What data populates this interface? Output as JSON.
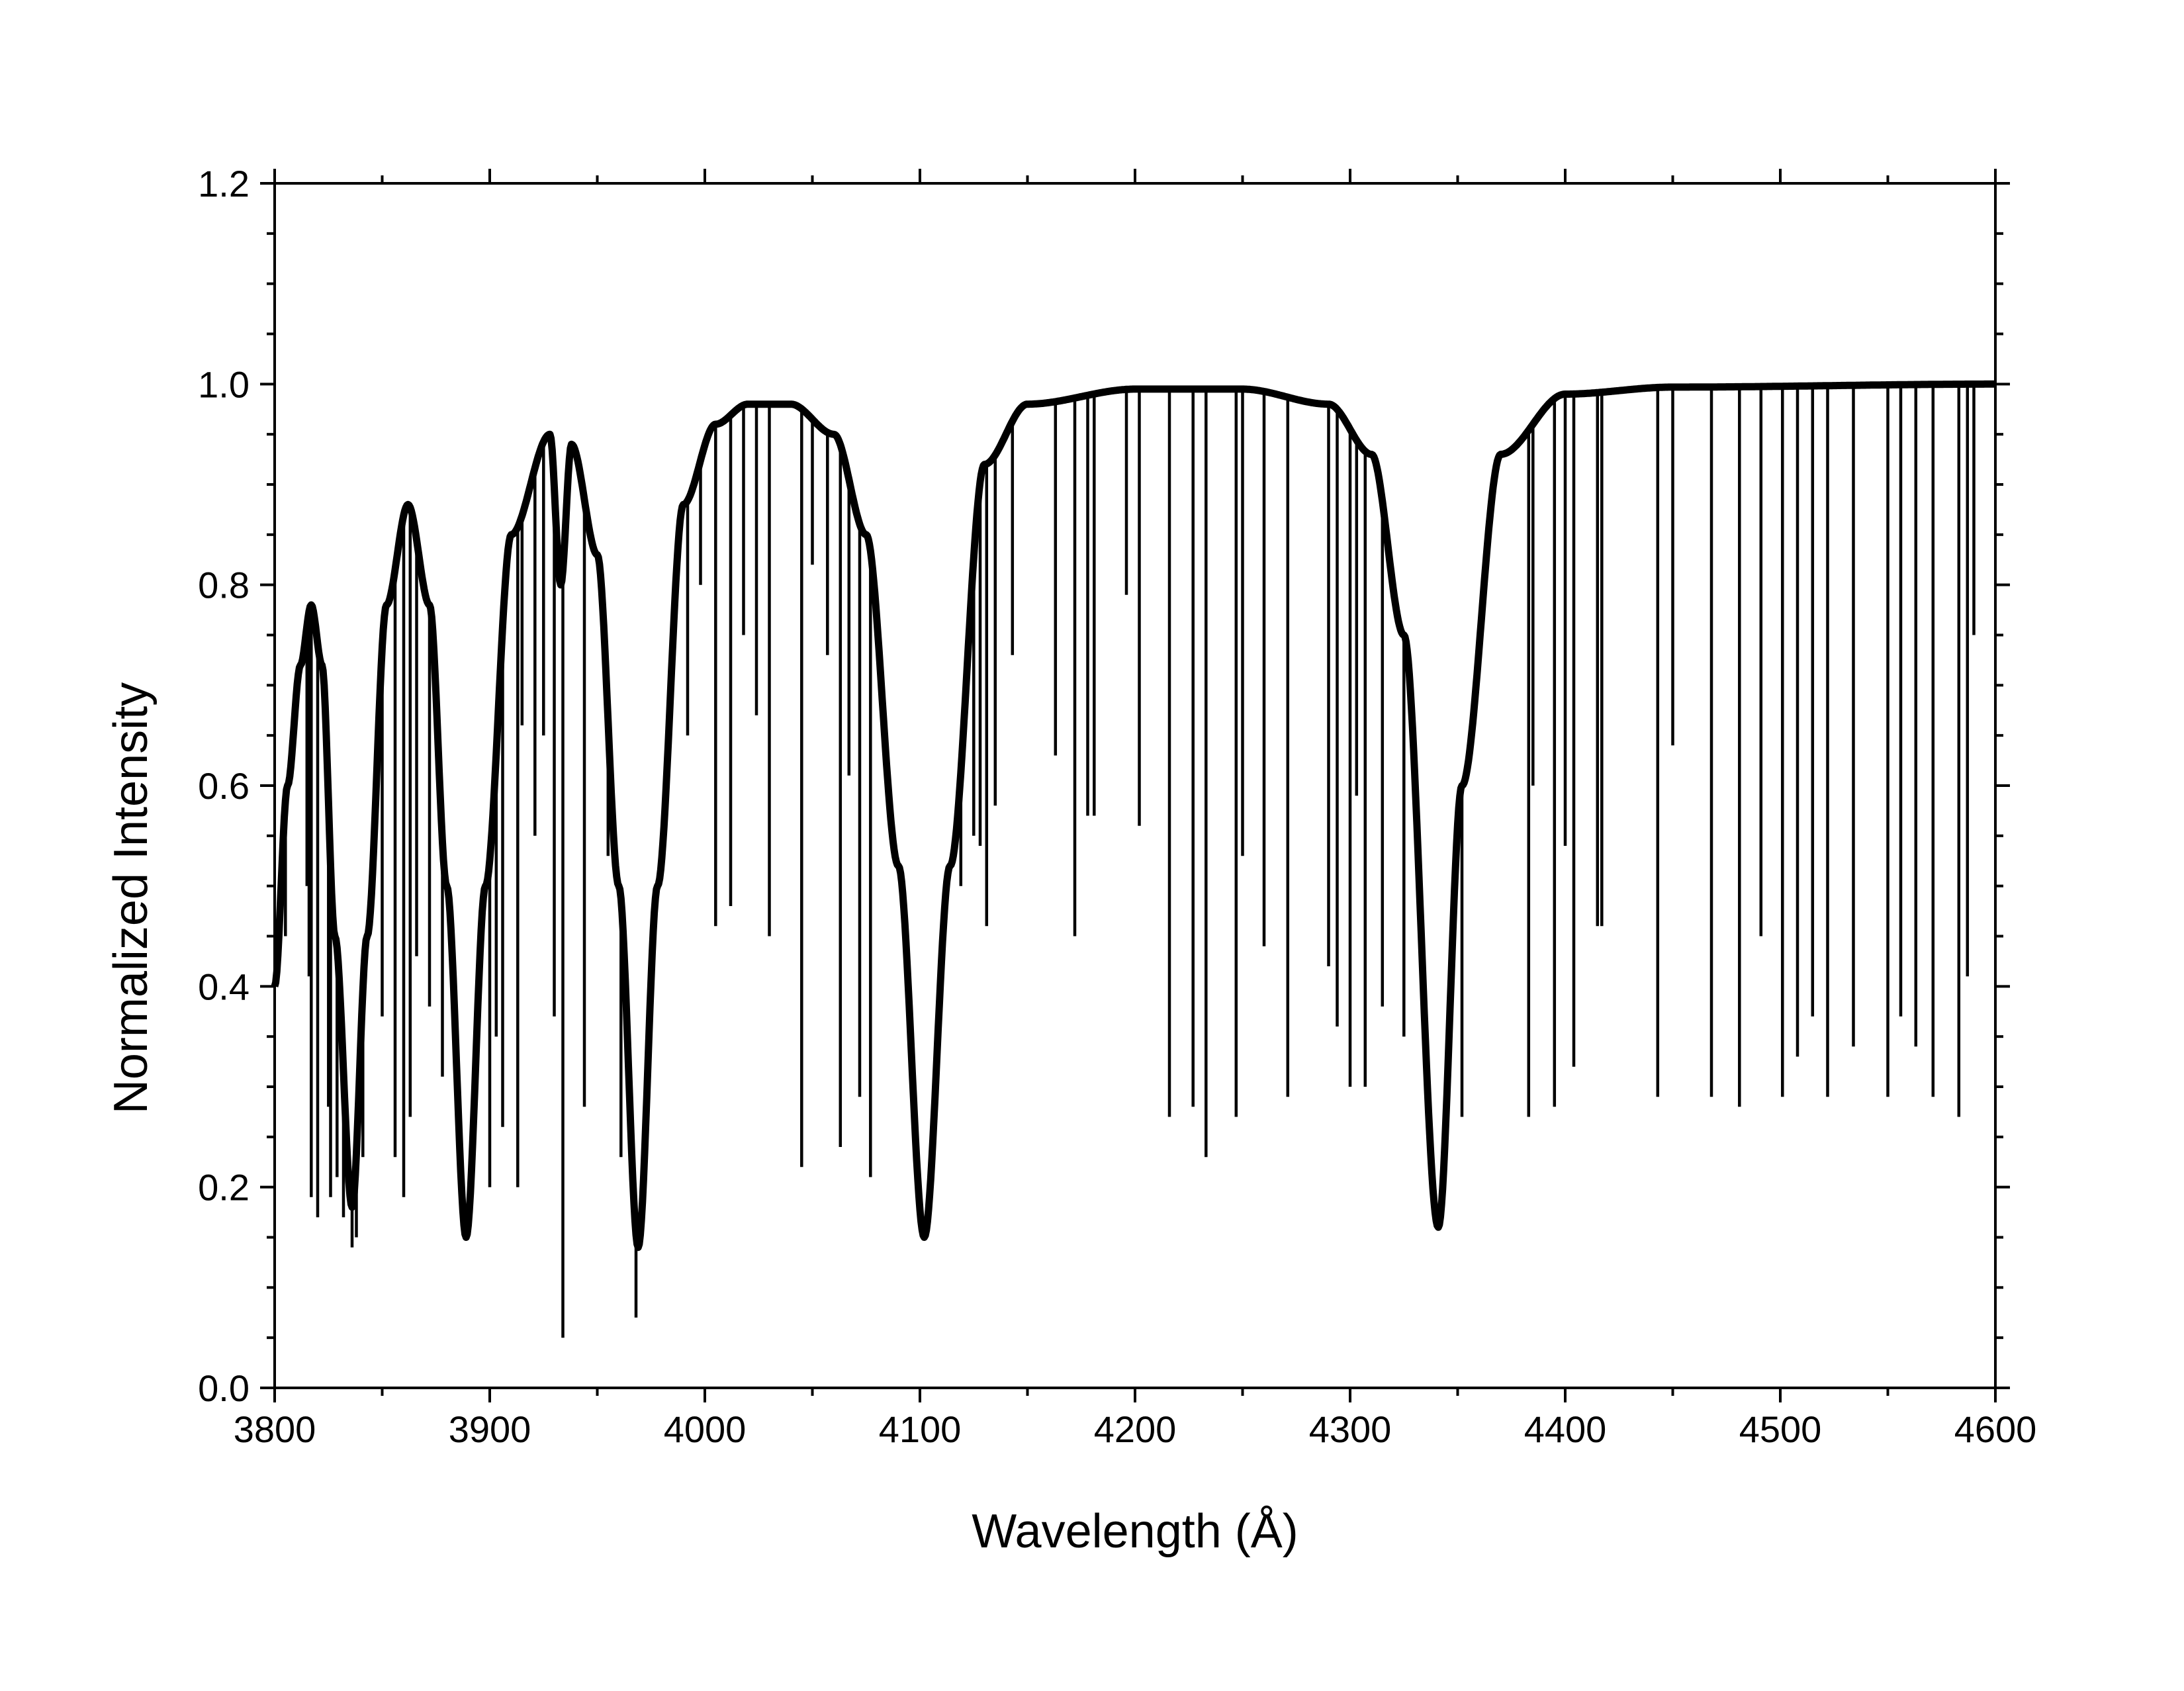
{
  "chart_data": {
    "type": "line",
    "xlabel": "Wavelength (Å)",
    "ylabel": "Normalized Intensity",
    "xlim": [
      3800,
      4600
    ],
    "ylim": [
      0.0,
      1.2
    ],
    "x_ticks": [
      "3800",
      "3900",
      "4000",
      "4100",
      "4200",
      "4300",
      "4400",
      "4500",
      "4600"
    ],
    "y_ticks": [
      "0.0",
      "0.2",
      "0.4",
      "0.6",
      "0.8",
      "1.0",
      "1.2"
    ],
    "grid": false,
    "legend": "none",
    "line_color": "#000000",
    "series": [
      {
        "continuum_anchor_points": [
          {
            "x": 3800,
            "y": 0.4
          },
          {
            "x": 3806,
            "y": 0.6
          },
          {
            "x": 3812,
            "y": 0.72
          },
          {
            "x": 3817,
            "y": 0.78
          },
          {
            "x": 3822,
            "y": 0.72
          },
          {
            "x": 3828,
            "y": 0.45
          },
          {
            "x": 3836,
            "y": 0.18
          },
          {
            "x": 3843,
            "y": 0.45
          },
          {
            "x": 3852,
            "y": 0.78
          },
          {
            "x": 3862,
            "y": 0.88
          },
          {
            "x": 3872,
            "y": 0.78
          },
          {
            "x": 3880,
            "y": 0.5
          },
          {
            "x": 3889,
            "y": 0.15
          },
          {
            "x": 3898,
            "y": 0.5
          },
          {
            "x": 3910,
            "y": 0.85
          },
          {
            "x": 3928,
            "y": 0.95
          },
          {
            "x": 3933,
            "y": 0.8
          },
          {
            "x": 3938,
            "y": 0.94
          },
          {
            "x": 3950,
            "y": 0.83
          },
          {
            "x": 3960,
            "y": 0.5
          },
          {
            "x": 3969,
            "y": 0.14
          },
          {
            "x": 3978,
            "y": 0.5
          },
          {
            "x": 3990,
            "y": 0.88
          },
          {
            "x": 4005,
            "y": 0.96
          },
          {
            "x": 4020,
            "y": 0.98
          },
          {
            "x": 4040,
            "y": 0.98
          },
          {
            "x": 4060,
            "y": 0.95
          },
          {
            "x": 4075,
            "y": 0.85
          },
          {
            "x": 4090,
            "y": 0.52
          },
          {
            "x": 4102,
            "y": 0.15
          },
          {
            "x": 4114,
            "y": 0.52
          },
          {
            "x": 4130,
            "y": 0.92
          },
          {
            "x": 4150,
            "y": 0.98
          },
          {
            "x": 4200,
            "y": 0.995
          },
          {
            "x": 4250,
            "y": 0.995
          },
          {
            "x": 4290,
            "y": 0.98
          },
          {
            "x": 4310,
            "y": 0.93
          },
          {
            "x": 4325,
            "y": 0.75
          },
          {
            "x": 4341,
            "y": 0.16
          },
          {
            "x": 4352,
            "y": 0.6
          },
          {
            "x": 4370,
            "y": 0.93
          },
          {
            "x": 4400,
            "y": 0.99
          },
          {
            "x": 4450,
            "y": 0.997
          },
          {
            "x": 4600,
            "y": 1.0
          }
        ],
        "absorption_lines": [
          {
            "x": 3805,
            "y": 0.45
          },
          {
            "x": 3815,
            "y": 0.5
          },
          {
            "x": 3816,
            "y": 0.41
          },
          {
            "x": 3817,
            "y": 0.19
          },
          {
            "x": 3820,
            "y": 0.17
          },
          {
            "x": 3825,
            "y": 0.28
          },
          {
            "x": 3826,
            "y": 0.19
          },
          {
            "x": 3829,
            "y": 0.21
          },
          {
            "x": 3832,
            "y": 0.17
          },
          {
            "x": 3836,
            "y": 0.14
          },
          {
            "x": 3838,
            "y": 0.15
          },
          {
            "x": 3841,
            "y": 0.23
          },
          {
            "x": 3845,
            "y": 0.5
          },
          {
            "x": 3850,
            "y": 0.37
          },
          {
            "x": 3856,
            "y": 0.23
          },
          {
            "x": 3860,
            "y": 0.19
          },
          {
            "x": 3863,
            "y": 0.27
          },
          {
            "x": 3866,
            "y": 0.43
          },
          {
            "x": 3872,
            "y": 0.38
          },
          {
            "x": 3878,
            "y": 0.31
          },
          {
            "x": 3886,
            "y": 0.26
          },
          {
            "x": 3900,
            "y": 0.2
          },
          {
            "x": 3903,
            "y": 0.35
          },
          {
            "x": 3906,
            "y": 0.26
          },
          {
            "x": 3913,
            "y": 0.2
          },
          {
            "x": 3915,
            "y": 0.66
          },
          {
            "x": 3921,
            "y": 0.55
          },
          {
            "x": 3925,
            "y": 0.65
          },
          {
            "x": 3930,
            "y": 0.37
          },
          {
            "x": 3934,
            "y": 0.05
          },
          {
            "x": 3944,
            "y": 0.28
          },
          {
            "x": 3955,
            "y": 0.53
          },
          {
            "x": 3961,
            "y": 0.23
          },
          {
            "x": 3968,
            "y": 0.07
          },
          {
            "x": 3986,
            "y": 0.78
          },
          {
            "x": 3992,
            "y": 0.65
          },
          {
            "x": 3998,
            "y": 0.8
          },
          {
            "x": 4005,
            "y": 0.46
          },
          {
            "x": 4012,
            "y": 0.48
          },
          {
            "x": 4018,
            "y": 0.75
          },
          {
            "x": 4024,
            "y": 0.67
          },
          {
            "x": 4030,
            "y": 0.45
          },
          {
            "x": 4045,
            "y": 0.22
          },
          {
            "x": 4050,
            "y": 0.82
          },
          {
            "x": 4057,
            "y": 0.73
          },
          {
            "x": 4063,
            "y": 0.24
          },
          {
            "x": 4067,
            "y": 0.61
          },
          {
            "x": 4072,
            "y": 0.29
          },
          {
            "x": 4077,
            "y": 0.21
          },
          {
            "x": 4084,
            "y": 0.65
          },
          {
            "x": 4119,
            "y": 0.5
          },
          {
            "x": 4125,
            "y": 0.55
          },
          {
            "x": 4128,
            "y": 0.54
          },
          {
            "x": 4131,
            "y": 0.46
          },
          {
            "x": 4135,
            "y": 0.58
          },
          {
            "x": 4143,
            "y": 0.73
          },
          {
            "x": 4163,
            "y": 0.63
          },
          {
            "x": 4172,
            "y": 0.45
          },
          {
            "x": 4178,
            "y": 0.57
          },
          {
            "x": 4181,
            "y": 0.57
          },
          {
            "x": 4196,
            "y": 0.79
          },
          {
            "x": 4202,
            "y": 0.56
          },
          {
            "x": 4216,
            "y": 0.27
          },
          {
            "x": 4227,
            "y": 0.28
          },
          {
            "x": 4233,
            "y": 0.23
          },
          {
            "x": 4247,
            "y": 0.27
          },
          {
            "x": 4250,
            "y": 0.53
          },
          {
            "x": 4260,
            "y": 0.44
          },
          {
            "x": 4271,
            "y": 0.29
          },
          {
            "x": 4290,
            "y": 0.42
          },
          {
            "x": 4294,
            "y": 0.36
          },
          {
            "x": 4300,
            "y": 0.3
          },
          {
            "x": 4303,
            "y": 0.59
          },
          {
            "x": 4307,
            "y": 0.3
          },
          {
            "x": 4315,
            "y": 0.38
          },
          {
            "x": 4325,
            "y": 0.35
          },
          {
            "x": 4352,
            "y": 0.27
          },
          {
            "x": 4383,
            "y": 0.27
          },
          {
            "x": 4385,
            "y": 0.6
          },
          {
            "x": 4395,
            "y": 0.28
          },
          {
            "x": 4400,
            "y": 0.54
          },
          {
            "x": 4404,
            "y": 0.32
          },
          {
            "x": 4415,
            "y": 0.46
          },
          {
            "x": 4417,
            "y": 0.46
          },
          {
            "x": 4443,
            "y": 0.29
          },
          {
            "x": 4450,
            "y": 0.64
          },
          {
            "x": 4468,
            "y": 0.29
          },
          {
            "x": 4481,
            "y": 0.28
          },
          {
            "x": 4491,
            "y": 0.45
          },
          {
            "x": 4501,
            "y": 0.29
          },
          {
            "x": 4508,
            "y": 0.33
          },
          {
            "x": 4515,
            "y": 0.37
          },
          {
            "x": 4522,
            "y": 0.29
          },
          {
            "x": 4534,
            "y": 0.34
          },
          {
            "x": 4550,
            "y": 0.29
          },
          {
            "x": 4556,
            "y": 0.37
          },
          {
            "x": 4563,
            "y": 0.34
          },
          {
            "x": 4571,
            "y": 0.29
          },
          {
            "x": 4583,
            "y": 0.27
          },
          {
            "x": 4587,
            "y": 0.41
          },
          {
            "x": 4590,
            "y": 0.75
          }
        ]
      }
    ]
  }
}
